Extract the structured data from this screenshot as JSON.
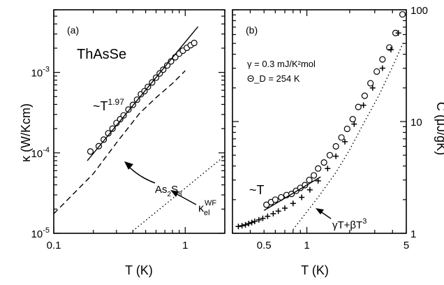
{
  "chart_data": [
    {
      "type": "scatter",
      "panel_label": "(a)",
      "title": "ThAsSe",
      "xlabel": "T (K)",
      "ylabel": "κ (W/Kcm)",
      "xscale": "log",
      "yscale": "log",
      "xlim": [
        0.1,
        2.0
      ],
      "ylim": [
        1e-05,
        0.006
      ],
      "xticks": [
        {
          "v": 0.1,
          "label": "0.1"
        },
        {
          "v": 1,
          "label": "1"
        }
      ],
      "yticks": [
        {
          "v": 1e-05,
          "base": "10",
          "exp": "-5"
        },
        {
          "v": 0.0001,
          "base": "10",
          "exp": "-4"
        },
        {
          "v": 0.001,
          "base": "10",
          "exp": "-3"
        }
      ],
      "series": [
        {
          "kind": "markers",
          "marker": "circle",
          "x": [
            0.19,
            0.22,
            0.24,
            0.26,
            0.28,
            0.3,
            0.32,
            0.34,
            0.37,
            0.4,
            0.43,
            0.46,
            0.49,
            0.52,
            0.56,
            0.6,
            0.64,
            0.68,
            0.73,
            0.78,
            0.84,
            0.9,
            0.96,
            1.03,
            1.1,
            1.17
          ],
          "y": [
            0.000104,
            0.000121,
            0.000146,
            0.000175,
            0.0002,
            0.000235,
            0.000262,
            0.000292,
            0.000345,
            0.000395,
            0.000458,
            0.000535,
            0.000585,
            0.00066,
            0.00075,
            0.00086,
            0.00097,
            0.00108,
            0.00122,
            0.00137,
            0.00154,
            0.00171,
            0.00186,
            0.00202,
            0.00218,
            0.00232
          ]
        },
        {
          "kind": "solid_line",
          "x": [
            0.18,
            1.25
          ],
          "y": [
            8e-05,
            0.0037
          ]
        },
        {
          "kind": "dashed_line",
          "x": [
            0.1,
            0.2,
            0.3,
            0.45,
            0.6,
            0.8,
            1.0
          ],
          "y": [
            1.75e-05,
            5.5e-05,
            0.000133,
            0.00031,
            0.000485,
            0.00073,
            0.00105
          ]
        },
        {
          "kind": "dotted_line",
          "x": [
            0.38,
            2.0
          ],
          "y": [
            1e-05,
            9.2e-05
          ]
        }
      ],
      "annotations": {
        "power_law": {
          "prefix": "~T",
          "exp": "1.97"
        },
        "as2s3": {
          "base": "As",
          "s1": "2",
          "mid": "S",
          "s2": "3"
        },
        "kappa_el": {
          "base": "κ",
          "sub": "el",
          "sup": "WF"
        }
      }
    },
    {
      "type": "scatter",
      "panel_label": "(b)",
      "xlabel": "T (K)",
      "ylabel": "C (μJ/gK)",
      "xscale": "log",
      "yscale": "log",
      "xlim": [
        0.3,
        5.0
      ],
      "ylim": [
        1,
        100
      ],
      "xticks": [
        {
          "v": 0.5,
          "label": "0.5"
        },
        {
          "v": 1,
          "label": "1"
        },
        {
          "v": 5,
          "label": "5"
        }
      ],
      "yticks": [
        {
          "v": 1,
          "label": "1"
        },
        {
          "v": 10,
          "label": "10"
        },
        {
          "v": 100,
          "label": "100"
        }
      ],
      "gamma_text": "γ = 0.3 mJ/K²mol",
      "theta_text": "Θ_D = 254 K",
      "series": [
        {
          "kind": "markers",
          "marker": "circle",
          "x": [
            0.52,
            0.56,
            0.6,
            0.66,
            0.72,
            0.78,
            0.84,
            0.9,
            0.97,
            1.04,
            1.12,
            1.2,
            1.32,
            1.45,
            1.6,
            1.75,
            1.92,
            2.1,
            2.3,
            2.55,
            2.8,
            3.1,
            3.4,
            3.8,
            4.2,
            4.7
          ],
          "y": [
            1.8,
            1.9,
            2.0,
            2.1,
            2.2,
            2.25,
            2.4,
            2.55,
            2.7,
            3.0,
            3.3,
            3.8,
            4.3,
            5.0,
            6.0,
            7.2,
            8.6,
            10.5,
            13.5,
            17.0,
            22.0,
            28.0,
            36.0,
            46.0,
            62.0,
            91.0
          ]
        },
        {
          "kind": "markers",
          "marker": "plus",
          "x": [
            0.33,
            0.35,
            0.37,
            0.39,
            0.41,
            0.43,
            0.46,
            0.49,
            0.53,
            0.58,
            0.63,
            0.7,
            0.8,
            0.92,
            1.05,
            1.2,
            1.4,
            1.6,
            1.85,
            2.15,
            2.5,
            2.9,
            3.4,
            3.9,
            4.4
          ],
          "y": [
            1.15,
            1.17,
            1.19,
            1.22,
            1.25,
            1.28,
            1.32,
            1.36,
            1.42,
            1.5,
            1.58,
            1.68,
            1.85,
            2.1,
            2.45,
            2.95,
            3.8,
            4.9,
            6.6,
            9.5,
            14.0,
            20.0,
            30.0,
            44.0,
            62.0
          ]
        },
        {
          "kind": "solid_line",
          "x": [
            0.5,
            1.25
          ],
          "y": [
            1.6,
            3.2
          ]
        },
        {
          "kind": "dotted_line",
          "x": [
            0.8,
            1.2,
            1.6,
            2.0,
            2.6,
            3.2,
            4.0,
            4.8
          ],
          "y": [
            1.08,
            2.1,
            3.5,
            5.6,
            10.5,
            17.0,
            31.0,
            52.0
          ]
        }
      ],
      "annotations": {
        "linear": "~T",
        "fit": {
          "gT": "γT+βT",
          "exp": "3"
        }
      }
    }
  ]
}
